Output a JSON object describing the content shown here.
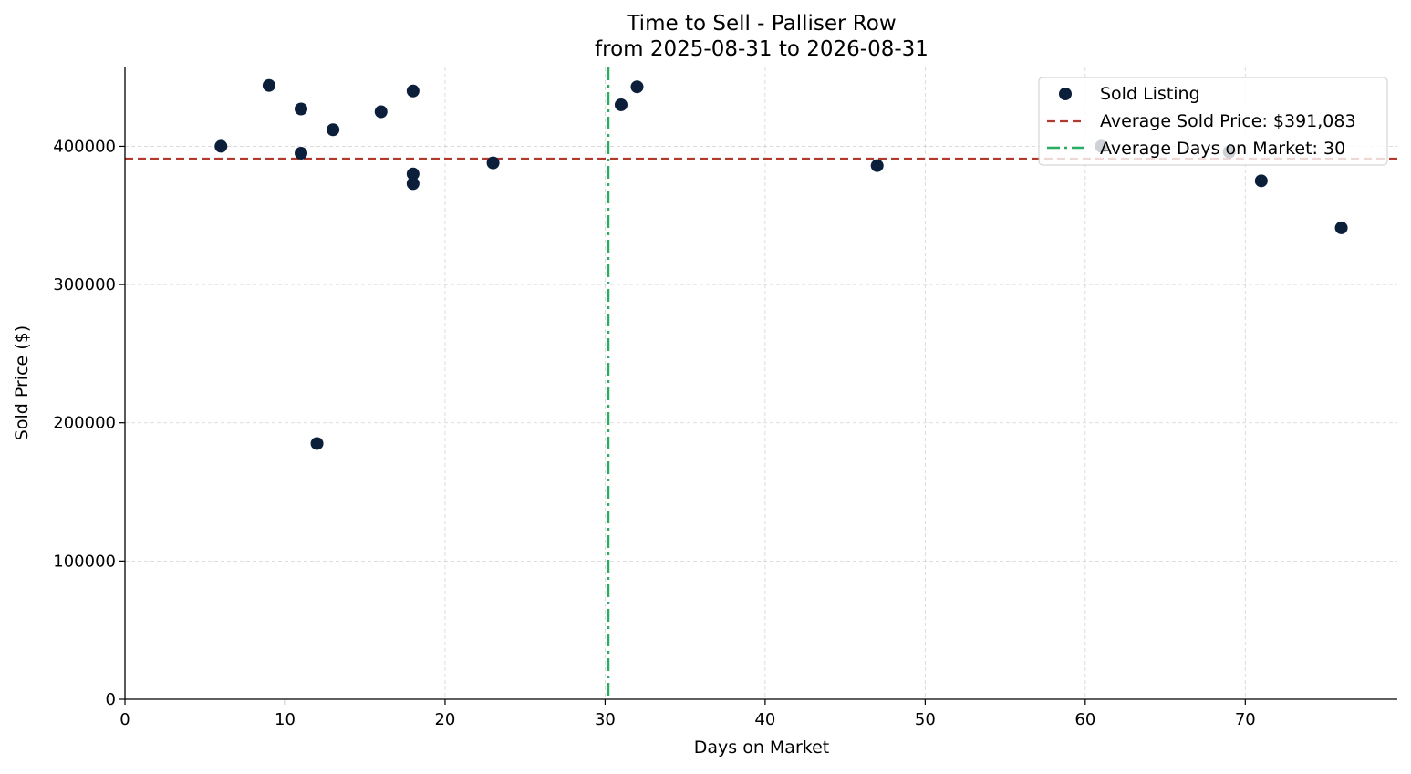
{
  "chart_data": {
    "type": "scatter",
    "title": "Time to Sell - Palliser Row",
    "subtitle": "from 2025-08-31 to 2026-08-31",
    "xlabel": "Days on Market",
    "ylabel": "Sold Price ($)",
    "xlim": [
      0,
      79.5
    ],
    "ylim": [
      0,
      457000
    ],
    "xticks": [
      0,
      10,
      20,
      30,
      40,
      50,
      60,
      70
    ],
    "yticks": [
      0,
      100000,
      200000,
      300000,
      400000
    ],
    "grid": true,
    "legend_position": "top-right",
    "series": [
      {
        "name": "Sold Listing",
        "kind": "scatter",
        "color": "#0b1e3a",
        "points": [
          {
            "x": 6,
            "y": 400000
          },
          {
            "x": 9,
            "y": 444000
          },
          {
            "x": 11,
            "y": 427000
          },
          {
            "x": 11,
            "y": 395000
          },
          {
            "x": 12,
            "y": 185000
          },
          {
            "x": 13,
            "y": 412000
          },
          {
            "x": 16,
            "y": 425000
          },
          {
            "x": 18,
            "y": 440000
          },
          {
            "x": 18,
            "y": 380000
          },
          {
            "x": 18,
            "y": 373000
          },
          {
            "x": 23,
            "y": 388000
          },
          {
            "x": 31,
            "y": 430000
          },
          {
            "x": 32,
            "y": 443000
          },
          {
            "x": 47,
            "y": 386000
          },
          {
            "x": 61,
            "y": 400000
          },
          {
            "x": 69,
            "y": 396000
          },
          {
            "x": 71,
            "y": 375000
          },
          {
            "x": 76,
            "y": 341000
          }
        ]
      }
    ],
    "reference_lines": [
      {
        "name": "Average Sold Price: $391,083",
        "orientation": "horizontal",
        "value": 391083,
        "style": "dashed",
        "color": "#b03a2e"
      },
      {
        "name": "Average Days on Market: 30",
        "orientation": "vertical",
        "value": 30.2,
        "style": "dashdot",
        "color": "#27ae60"
      }
    ]
  }
}
